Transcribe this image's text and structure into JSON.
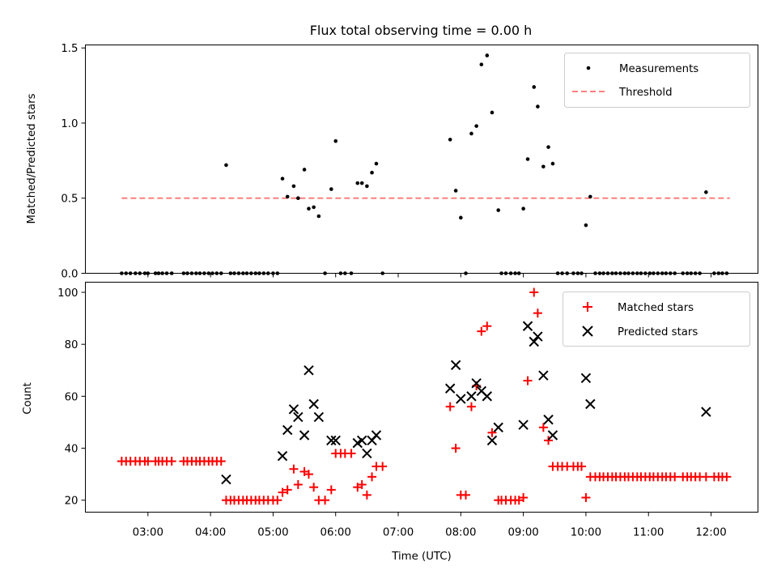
{
  "chart_data": [
    {
      "type": "scatter",
      "title": "Flux total observing time = 0.00 h",
      "xlabel": "",
      "ylabel": "Matched/Predicted stars",
      "ylim": [
        0,
        1.52
      ],
      "yticks": [
        0.0,
        0.5,
        1.0,
        1.5
      ],
      "ytick_labels": [
        "0.0",
        "0.5",
        "1.0",
        "1.5"
      ],
      "legend": "top-right",
      "series": [
        {
          "name": "Measurements",
          "marker": "dot",
          "color": "#000000",
          "points": [
            [
              2.58,
              0
            ],
            [
              2.65,
              0
            ],
            [
              2.72,
              0
            ],
            [
              2.8,
              0
            ],
            [
              2.87,
              0
            ],
            [
              2.95,
              0
            ],
            [
              3.0,
              0
            ],
            [
              3.12,
              0
            ],
            [
              3.17,
              0
            ],
            [
              3.23,
              0
            ],
            [
              3.3,
              0
            ],
            [
              3.38,
              0
            ],
            [
              3.57,
              0
            ],
            [
              3.63,
              0
            ],
            [
              3.7,
              0
            ],
            [
              3.77,
              0
            ],
            [
              3.83,
              0
            ],
            [
              3.9,
              0
            ],
            [
              3.97,
              0
            ],
            [
              4.03,
              0
            ],
            [
              4.1,
              0
            ],
            [
              4.17,
              0
            ],
            [
              4.25,
              0.72
            ],
            [
              4.32,
              0
            ],
            [
              4.38,
              0
            ],
            [
              4.45,
              0
            ],
            [
              4.52,
              0
            ],
            [
              4.58,
              0
            ],
            [
              4.65,
              0
            ],
            [
              4.72,
              0
            ],
            [
              4.78,
              0
            ],
            [
              4.85,
              0
            ],
            [
              4.92,
              0
            ],
            [
              5.0,
              0
            ],
            [
              5.07,
              0
            ],
            [
              5.15,
              0.63
            ],
            [
              5.23,
              0.51
            ],
            [
              5.33,
              0.58
            ],
            [
              5.4,
              0.5
            ],
            [
              5.5,
              0.69
            ],
            [
              5.57,
              0.43
            ],
            [
              5.65,
              0.44
            ],
            [
              5.73,
              0.38
            ],
            [
              5.83,
              0
            ],
            [
              5.93,
              0.56
            ],
            [
              6.0,
              0.88
            ],
            [
              6.08,
              0
            ],
            [
              6.15,
              0
            ],
            [
              6.25,
              0
            ],
            [
              6.35,
              0.6
            ],
            [
              6.42,
              0.6
            ],
            [
              6.5,
              0.58
            ],
            [
              6.58,
              0.67
            ],
            [
              6.65,
              0.73
            ],
            [
              6.75,
              0
            ],
            [
              7.83,
              0.89
            ],
            [
              7.92,
              0.55
            ],
            [
              8.0,
              0.37
            ],
            [
              8.08,
              0
            ],
            [
              8.17,
              0.93
            ],
            [
              8.25,
              0.98
            ],
            [
              8.33,
              1.39
            ],
            [
              8.42,
              1.45
            ],
            [
              8.5,
              1.07
            ],
            [
              8.6,
              0.42
            ],
            [
              8.65,
              0
            ],
            [
              8.72,
              0
            ],
            [
              8.8,
              0
            ],
            [
              8.87,
              0
            ],
            [
              8.93,
              0
            ],
            [
              9.0,
              0.43
            ],
            [
              9.07,
              0.76
            ],
            [
              9.17,
              1.24
            ],
            [
              9.23,
              1.11
            ],
            [
              9.32,
              0.71
            ],
            [
              9.4,
              0.84
            ],
            [
              9.47,
              0.73
            ],
            [
              9.55,
              0
            ],
            [
              9.62,
              0
            ],
            [
              9.7,
              0
            ],
            [
              9.8,
              0
            ],
            [
              9.87,
              0
            ],
            [
              9.93,
              0
            ],
            [
              10.0,
              0.32
            ],
            [
              10.07,
              0.51
            ],
            [
              10.15,
              0
            ],
            [
              10.22,
              0
            ],
            [
              10.28,
              0
            ],
            [
              10.35,
              0
            ],
            [
              10.42,
              0
            ],
            [
              10.48,
              0
            ],
            [
              10.55,
              0
            ],
            [
              10.62,
              0
            ],
            [
              10.68,
              0
            ],
            [
              10.75,
              0
            ],
            [
              10.82,
              0
            ],
            [
              10.88,
              0
            ],
            [
              10.95,
              0
            ],
            [
              11.02,
              0
            ],
            [
              11.08,
              0
            ],
            [
              11.15,
              0
            ],
            [
              11.22,
              0
            ],
            [
              11.28,
              0
            ],
            [
              11.35,
              0
            ],
            [
              11.42,
              0
            ],
            [
              11.55,
              0
            ],
            [
              11.62,
              0
            ],
            [
              11.68,
              0
            ],
            [
              11.75,
              0
            ],
            [
              11.82,
              0
            ],
            [
              11.92,
              0.54
            ],
            [
              12.05,
              0
            ],
            [
              12.12,
              0
            ],
            [
              12.18,
              0
            ],
            [
              12.25,
              0
            ]
          ]
        },
        {
          "name": "Threshold",
          "marker": "dashed-line",
          "color": "#ff7f7f",
          "points": [
            [
              2.58,
              0.5
            ],
            [
              12.3,
              0.5
            ]
          ]
        }
      ]
    },
    {
      "type": "scatter",
      "title": "",
      "xlabel": "Time (UTC)",
      "ylabel": "Count",
      "xlim": [
        2.0,
        12.75
      ],
      "ylim": [
        15.4,
        103.9
      ],
      "yticks": [
        20,
        40,
        60,
        80,
        100
      ],
      "ytick_labels": [
        "20",
        "40",
        "60",
        "80",
        "100"
      ],
      "xticks": [
        3,
        4,
        5,
        6,
        7,
        8,
        9,
        10,
        11,
        12
      ],
      "xtick_labels": [
        "03:00",
        "04:00",
        "05:00",
        "06:00",
        "07:00",
        "08:00",
        "09:00",
        "10:00",
        "11:00",
        "12:00"
      ],
      "legend": "top-right",
      "series": [
        {
          "name": "Matched stars",
          "marker": "plus",
          "color": "#ff0000",
          "points": [
            [
              2.58,
              35
            ],
            [
              2.65,
              35
            ],
            [
              2.72,
              35
            ],
            [
              2.8,
              35
            ],
            [
              2.87,
              35
            ],
            [
              2.95,
              35
            ],
            [
              3.0,
              35
            ],
            [
              3.12,
              35
            ],
            [
              3.17,
              35
            ],
            [
              3.23,
              35
            ],
            [
              3.3,
              35
            ],
            [
              3.38,
              35
            ],
            [
              3.57,
              35
            ],
            [
              3.63,
              35
            ],
            [
              3.7,
              35
            ],
            [
              3.77,
              35
            ],
            [
              3.83,
              35
            ],
            [
              3.9,
              35
            ],
            [
              3.97,
              35
            ],
            [
              4.03,
              35
            ],
            [
              4.1,
              35
            ],
            [
              4.17,
              35
            ],
            [
              4.25,
              20
            ],
            [
              4.32,
              20
            ],
            [
              4.38,
              20
            ],
            [
              4.45,
              20
            ],
            [
              4.52,
              20
            ],
            [
              4.58,
              20
            ],
            [
              4.65,
              20
            ],
            [
              4.72,
              20
            ],
            [
              4.78,
              20
            ],
            [
              4.85,
              20
            ],
            [
              4.92,
              20
            ],
            [
              5.0,
              20
            ],
            [
              5.07,
              20
            ],
            [
              5.15,
              23
            ],
            [
              5.23,
              24
            ],
            [
              5.33,
              32
            ],
            [
              5.4,
              26
            ],
            [
              5.5,
              31
            ],
            [
              5.57,
              30
            ],
            [
              5.65,
              25
            ],
            [
              5.73,
              20
            ],
            [
              5.83,
              20
            ],
            [
              5.93,
              24
            ],
            [
              6.0,
              38
            ],
            [
              6.08,
              38
            ],
            [
              6.15,
              38
            ],
            [
              6.25,
              38
            ],
            [
              6.35,
              25
            ],
            [
              6.42,
              26
            ],
            [
              6.5,
              22
            ],
            [
              6.58,
              29
            ],
            [
              6.65,
              33
            ],
            [
              6.75,
              33
            ],
            [
              7.83,
              56
            ],
            [
              7.92,
              40
            ],
            [
              8.0,
              22
            ],
            [
              8.08,
              22
            ],
            [
              8.17,
              56
            ],
            [
              8.25,
              64
            ],
            [
              8.33,
              85
            ],
            [
              8.42,
              87
            ],
            [
              8.5,
              46
            ],
            [
              8.6,
              20
            ],
            [
              8.65,
              20
            ],
            [
              8.72,
              20
            ],
            [
              8.8,
              20
            ],
            [
              8.87,
              20
            ],
            [
              8.93,
              20
            ],
            [
              9.0,
              21
            ],
            [
              9.07,
              66
            ],
            [
              9.17,
              100
            ],
            [
              9.23,
              92
            ],
            [
              9.32,
              48
            ],
            [
              9.4,
              43
            ],
            [
              9.47,
              33
            ],
            [
              9.55,
              33
            ],
            [
              9.62,
              33
            ],
            [
              9.7,
              33
            ],
            [
              9.8,
              33
            ],
            [
              9.87,
              33
            ],
            [
              9.93,
              33
            ],
            [
              10.0,
              21
            ],
            [
              10.07,
              29
            ],
            [
              10.15,
              29
            ],
            [
              10.22,
              29
            ],
            [
              10.28,
              29
            ],
            [
              10.35,
              29
            ],
            [
              10.42,
              29
            ],
            [
              10.48,
              29
            ],
            [
              10.55,
              29
            ],
            [
              10.62,
              29
            ],
            [
              10.68,
              29
            ],
            [
              10.75,
              29
            ],
            [
              10.82,
              29
            ],
            [
              10.88,
              29
            ],
            [
              10.95,
              29
            ],
            [
              11.02,
              29
            ],
            [
              11.08,
              29
            ],
            [
              11.15,
              29
            ],
            [
              11.22,
              29
            ],
            [
              11.28,
              29
            ],
            [
              11.35,
              29
            ],
            [
              11.42,
              29
            ],
            [
              11.55,
              29
            ],
            [
              11.62,
              29
            ],
            [
              11.68,
              29
            ],
            [
              11.75,
              29
            ],
            [
              11.82,
              29
            ],
            [
              11.92,
              29
            ],
            [
              12.05,
              29
            ],
            [
              12.12,
              29
            ],
            [
              12.18,
              29
            ],
            [
              12.25,
              29
            ]
          ]
        },
        {
          "name": "Predicted stars",
          "marker": "x",
          "color": "#000000",
          "points": [
            [
              4.25,
              28
            ],
            [
              5.15,
              37
            ],
            [
              5.23,
              47
            ],
            [
              5.33,
              55
            ],
            [
              5.4,
              52
            ],
            [
              5.5,
              45
            ],
            [
              5.57,
              70
            ],
            [
              5.65,
              57
            ],
            [
              5.73,
              52
            ],
            [
              5.93,
              43
            ],
            [
              6.0,
              43
            ],
            [
              6.35,
              42
            ],
            [
              6.42,
              43
            ],
            [
              6.5,
              38
            ],
            [
              6.58,
              43
            ],
            [
              6.65,
              45
            ],
            [
              7.83,
              63
            ],
            [
              7.92,
              72
            ],
            [
              8.0,
              59
            ],
            [
              8.17,
              60
            ],
            [
              8.25,
              65
            ],
            [
              8.33,
              62
            ],
            [
              8.42,
              60
            ],
            [
              8.5,
              43
            ],
            [
              8.6,
              48
            ],
            [
              9.0,
              49
            ],
            [
              9.07,
              87
            ],
            [
              9.17,
              81
            ],
            [
              9.23,
              83
            ],
            [
              9.32,
              68
            ],
            [
              9.4,
              51
            ],
            [
              9.47,
              45
            ],
            [
              10.0,
              67
            ],
            [
              10.07,
              57
            ],
            [
              11.92,
              54
            ]
          ]
        }
      ]
    }
  ]
}
